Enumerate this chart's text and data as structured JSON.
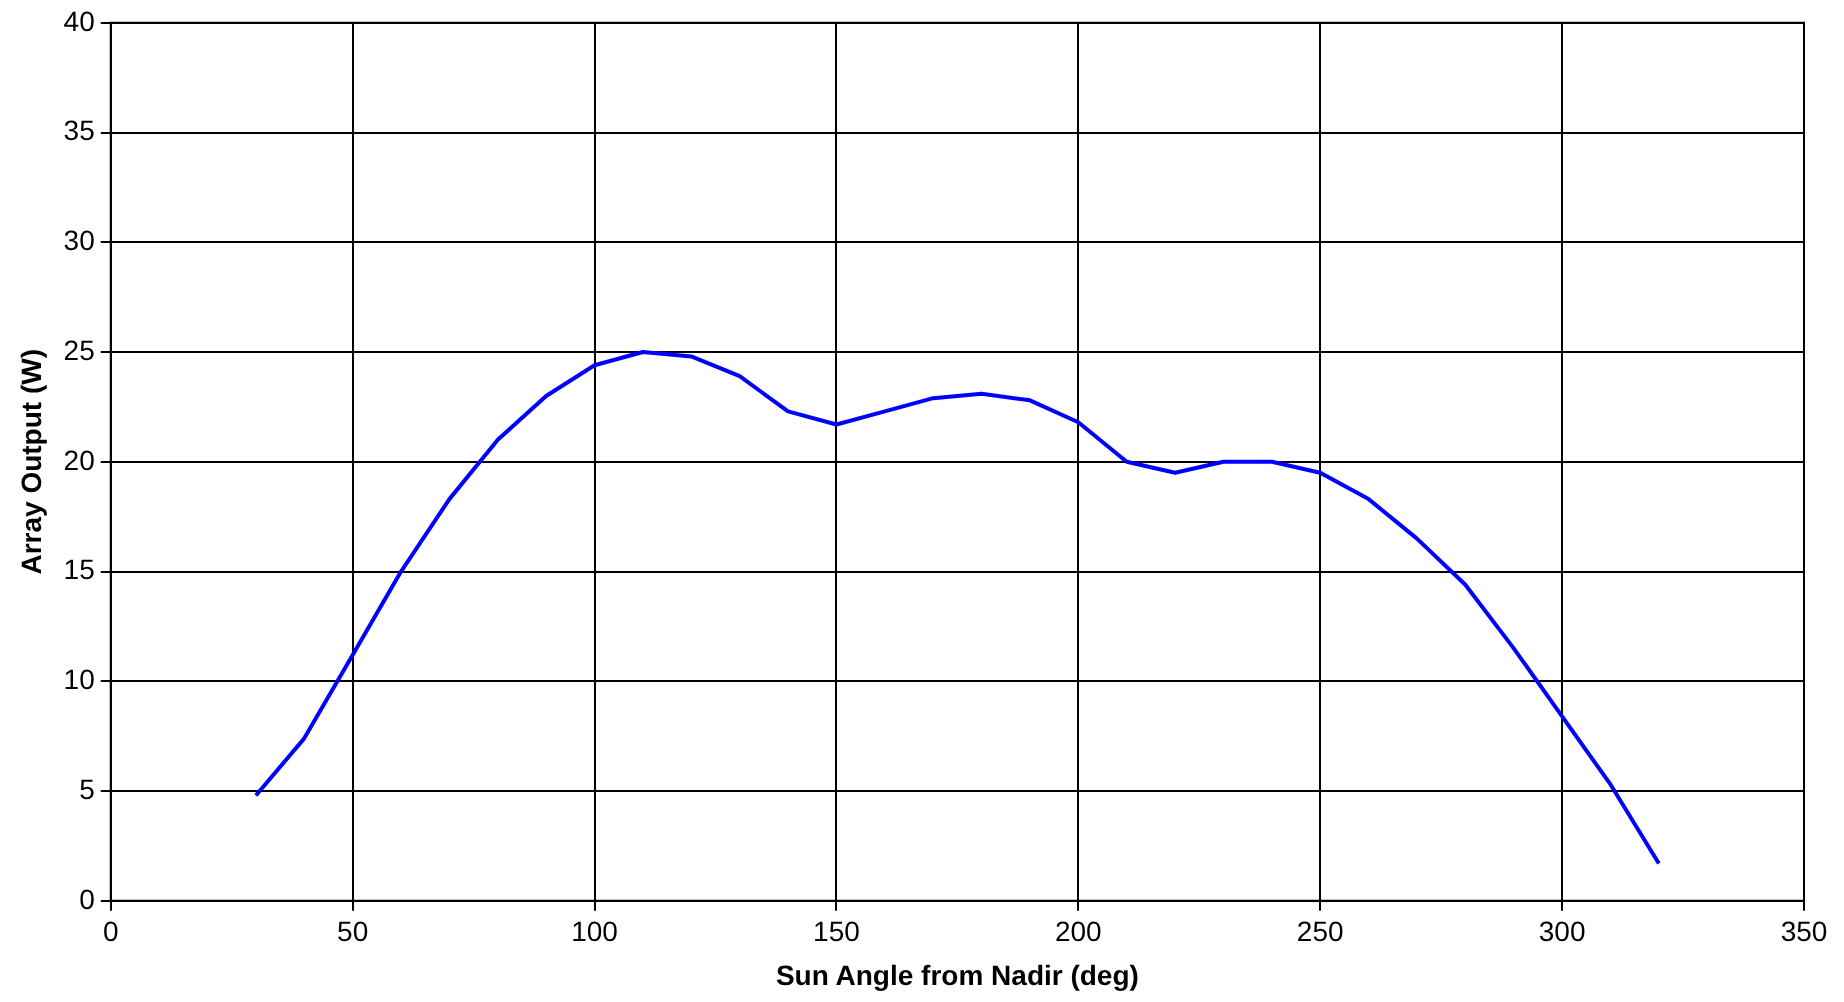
{
  "chart_data": {
    "type": "line",
    "xlabel": "Sun Angle from Nadir (deg)",
    "ylabel": "Array Output (W)",
    "x": [
      30,
      40,
      50,
      60,
      70,
      80,
      90,
      100,
      110,
      120,
      130,
      140,
      150,
      160,
      170,
      180,
      190,
      200,
      210,
      220,
      230,
      240,
      250,
      260,
      270,
      280,
      290,
      300,
      310,
      320
    ],
    "series": [
      {
        "color": "#0000ff",
        "values": [
          4.8,
          7.4,
          11.2,
          15.0,
          18.3,
          21.0,
          23.0,
          24.4,
          25.0,
          24.8,
          23.9,
          22.3,
          21.7,
          22.3,
          22.9,
          23.1,
          22.8,
          21.8,
          20.0,
          19.5,
          20.0,
          20.0,
          19.5,
          18.3,
          16.5,
          14.4,
          11.5,
          8.4,
          5.3,
          1.7
        ]
      }
    ],
    "xlim": [
      0,
      350
    ],
    "xticks": [
      0,
      50,
      100,
      150,
      200,
      250,
      300,
      350
    ],
    "ylim": [
      0,
      40
    ],
    "yticks": [
      0,
      5,
      10,
      15,
      20,
      25,
      30,
      35,
      40
    ],
    "grid": true,
    "marker": "none",
    "line_style": "solid",
    "legend": false
  }
}
